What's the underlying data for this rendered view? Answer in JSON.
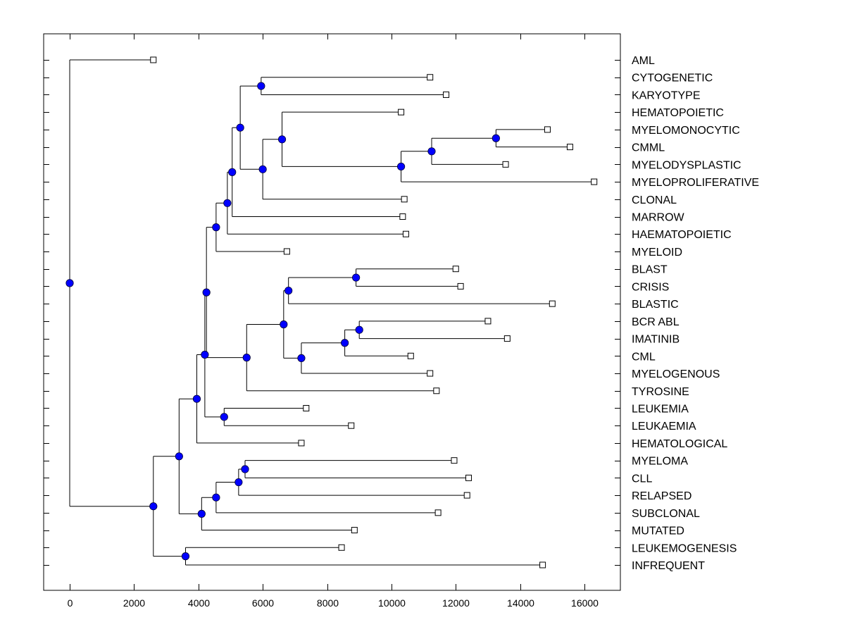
{
  "chart_data": {
    "type": "dendrogram",
    "title": "",
    "xlabel": "",
    "ylabel": "",
    "xlim": [
      -800,
      17200
    ],
    "xticks": [
      0,
      2000,
      4000,
      6000,
      8000,
      10000,
      12000,
      14000,
      16000
    ],
    "xtick_labels": [
      "0",
      "2000",
      "4000",
      "6000",
      "8000",
      "10000",
      "12000",
      "14000",
      "16000"
    ],
    "grid": false,
    "orientation": "left-to-right",
    "leaf_labels_position": "right",
    "colors": {
      "node_fill": "#0000ff",
      "leaf_fill": "#ffffff",
      "line": "#000000"
    },
    "leaves": [
      {
        "label": "AML",
        "value": 2600
      },
      {
        "label": "CYTOGENETIC",
        "value": 11200
      },
      {
        "label": "KARYOTYPE",
        "value": 11700
      },
      {
        "label": "HEMATOPOIETIC",
        "value": 10300
      },
      {
        "label": "MYELOMONOCYTIC",
        "value": 14850
      },
      {
        "label": "CMML",
        "value": 15550
      },
      {
        "label": "MYELODYSPLASTIC",
        "value": 13550
      },
      {
        "label": "MYELOPROLIFERATIVE",
        "value": 16300
      },
      {
        "label": "CLONAL",
        "value": 10400
      },
      {
        "label": "MARROW",
        "value": 10350
      },
      {
        "label": "HAEMATOPOIETIC",
        "value": 10450
      },
      {
        "label": "MYELOID",
        "value": 6750
      },
      {
        "label": "BLAST",
        "value": 12000
      },
      {
        "label": "CRISIS",
        "value": 12150
      },
      {
        "label": "BLASTIC",
        "value": 15000
      },
      {
        "label": "BCR ABL",
        "value": 13000
      },
      {
        "label": "IMATINIB",
        "value": 13600
      },
      {
        "label": "CML",
        "value": 10600
      },
      {
        "label": "MYELOGENOUS",
        "value": 11200
      },
      {
        "label": "TYROSINE",
        "value": 11400
      },
      {
        "label": "LEUKEMIA",
        "value": 7350
      },
      {
        "label": "LEUKAEMIA",
        "value": 8750
      },
      {
        "label": "HEMATOLOGICAL",
        "value": 7200
      },
      {
        "label": "MYELOMA",
        "value": 11950
      },
      {
        "label": "CLL",
        "value": 12400
      },
      {
        "label": "RELAPSED",
        "value": 12350
      },
      {
        "label": "SUBCLONAL",
        "value": 11450
      },
      {
        "label": "MUTATED",
        "value": 8850
      },
      {
        "label": "LEUKEMOGENESIS",
        "value": 8450
      },
      {
        "label": "INFREQUENT",
        "value": 14700
      }
    ],
    "nodes": [
      {
        "id": "n_cyto_kary",
        "value": 5950,
        "children": [
          "L1",
          "L2"
        ]
      },
      {
        "id": "n_myelo_cmml",
        "value": 13250,
        "children": [
          "L4",
          "L5"
        ]
      },
      {
        "id": "n_mm_dysp",
        "value": 11250,
        "children": [
          "n_myelo_cmml",
          "L6"
        ]
      },
      {
        "id": "n_mm_prolif",
        "value": 10300,
        "children": [
          "n_mm_dysp",
          "L7"
        ]
      },
      {
        "id": "n_hemato_grp",
        "value": 6600,
        "children": [
          "L3",
          "n_mm_prolif"
        ]
      },
      {
        "id": "n_clonal_grp",
        "value": 6000,
        "children": [
          "n_hemato_grp",
          "L8"
        ]
      },
      {
        "id": "n_top_a",
        "value": 5300,
        "children": [
          "n_cyto_kary",
          "n_clonal_grp"
        ]
      },
      {
        "id": "n_marrow_grp",
        "value": 5050,
        "children": [
          "n_top_a",
          "L9"
        ]
      },
      {
        "id": "n_haema_grp",
        "value": 4900,
        "children": [
          "n_marrow_grp",
          "L10"
        ]
      },
      {
        "id": "n_myeloid_grp",
        "value": 4550,
        "children": [
          "n_haema_grp",
          "L11"
        ]
      },
      {
        "id": "n_blast_crisis",
        "value": 8900,
        "children": [
          "L12",
          "L13"
        ]
      },
      {
        "id": "n_blastic_grp",
        "value": 6800,
        "children": [
          "n_blast_crisis",
          "L14"
        ]
      },
      {
        "id": "n_bcr_imat",
        "value": 9000,
        "children": [
          "L15",
          "L16"
        ]
      },
      {
        "id": "n_cml_grp",
        "value": 8550,
        "children": [
          "n_bcr_imat",
          "L17"
        ]
      },
      {
        "id": "n_myelog_grp",
        "value": 7200,
        "children": [
          "n_cml_grp",
          "L18"
        ]
      },
      {
        "id": "n_cml_blast",
        "value": 6650,
        "children": [
          "n_blastic_grp",
          "n_myelog_grp"
        ]
      },
      {
        "id": "n_tyros_grp",
        "value": 5500,
        "children": [
          "n_cml_blast",
          "L19"
        ]
      },
      {
        "id": "n_myel_cml",
        "value": 4250,
        "children": [
          "n_myeloid_grp",
          "n_tyros_grp"
        ]
      },
      {
        "id": "n_leuk",
        "value": 4800,
        "children": [
          "L20",
          "L21"
        ]
      },
      {
        "id": "n_leuk_grp",
        "value": 4200,
        "children": [
          "n_myel_cml",
          "n_leuk"
        ]
      },
      {
        "id": "n_hematol_grp",
        "value": 3950,
        "children": [
          "n_leuk_grp",
          "L22"
        ]
      },
      {
        "id": "n_myeloma_cll",
        "value": 5450,
        "children": [
          "L23",
          "L24"
        ]
      },
      {
        "id": "n_relapsed_grp",
        "value": 5250,
        "children": [
          "n_myeloma_cll",
          "L25"
        ]
      },
      {
        "id": "n_subclonal_grp",
        "value": 4550,
        "children": [
          "n_relapsed_grp",
          "L26"
        ]
      },
      {
        "id": "n_mutated_grp",
        "value": 4100,
        "children": [
          "n_subclonal_grp",
          "L27"
        ]
      },
      {
        "id": "n_mid",
        "value": 3400,
        "children": [
          "n_hematol_grp",
          "n_mutated_grp"
        ]
      },
      {
        "id": "n_leukemog",
        "value": 3600,
        "children": [
          "L28",
          "L29"
        ]
      },
      {
        "id": "n_low",
        "value": 2600,
        "children": [
          "n_mid",
          "n_leukemog"
        ]
      },
      {
        "id": "n_root",
        "value": 0,
        "children": [
          "L0",
          "n_low"
        ]
      }
    ]
  }
}
